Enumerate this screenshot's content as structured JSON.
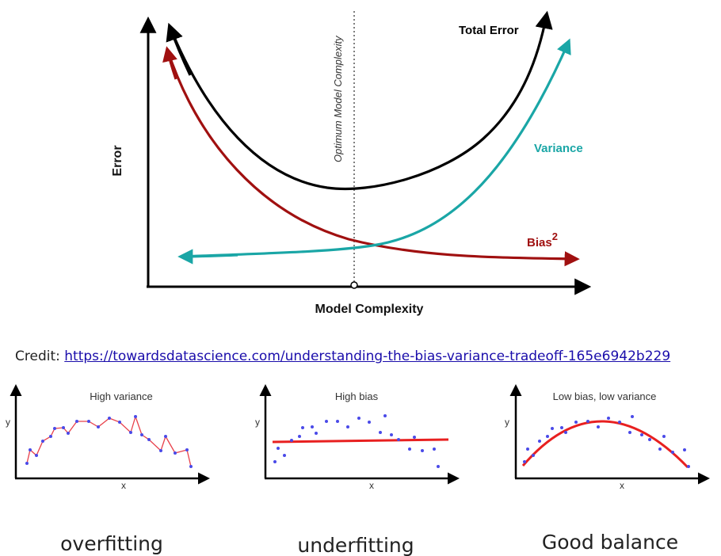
{
  "main_chart": {
    "y_axis_label": "Error",
    "x_axis_label": "Model Complexity",
    "optimum_label": "Optimum Model Complexity",
    "total_error_label": "Total Error",
    "variance_label": "Variance",
    "bias_label": "Bias",
    "bias_superscript": "2",
    "colors": {
      "total_error": "#000000",
      "variance": "#1aa6a6",
      "bias": "#a01010"
    }
  },
  "credit": {
    "prefix": "Credit: ",
    "link_text": "https://towardsdatascience.com/understanding-the-bias-variance-tradeoff-165e6942b229"
  },
  "panels": [
    {
      "title": "High variance",
      "x_label": "x",
      "y_label": "y",
      "caption": "overfitting"
    },
    {
      "title": "High bias",
      "x_label": "x",
      "y_label": "y",
      "caption": "underfitting"
    },
    {
      "title": "Low bias, low variance",
      "x_label": "x",
      "y_label": "y",
      "caption": "Good balance"
    }
  ]
}
